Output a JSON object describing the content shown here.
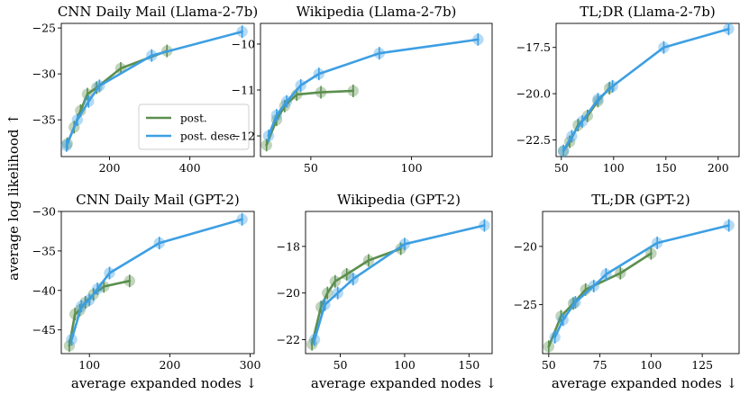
{
  "figure": {
    "xlabel": "average expanded nodes ↓",
    "ylabel": "average log likelihood ↑",
    "colors": {
      "post": "#5b8f4e",
      "post_desc": "#3d9fe3"
    },
    "legend": {
      "post": "post.",
      "post_desc": "post. desc.",
      "location": "lower-right",
      "panel": 0
    }
  },
  "chart_data": [
    {
      "type": "line",
      "title": "CNN Daily Mail (Llama-2-7b)",
      "xlim": [
        80,
        560
      ],
      "ylim": [
        -39,
        -24.5
      ],
      "xticks": [
        200,
        400
      ],
      "xticklabels": [
        "200",
        "400"
      ],
      "yticks": [
        -35,
        -30,
        -25
      ],
      "yticklabels": [
        "−35",
        "−30",
        "−25"
      ],
      "series": [
        {
          "name": "post.",
          "x": [
            95,
            112,
            128,
            145,
            168,
            228,
            343
          ],
          "y": [
            -37.6,
            -35.8,
            -34.0,
            -32.2,
            -31.5,
            -29.4,
            -27.5
          ]
        },
        {
          "name": "post. desc.",
          "x": [
            93,
            120,
            148,
            175,
            305,
            530
          ],
          "y": [
            -37.8,
            -35.0,
            -33.0,
            -31.3,
            -28.0,
            -25.4
          ]
        }
      ]
    },
    {
      "type": "line",
      "title": "Wikipedia (Llama-2-7b)",
      "xlim": [
        25,
        140
      ],
      "ylim": [
        -12.45,
        -9.55
      ],
      "xticks": [
        50,
        100
      ],
      "xticklabels": [
        "50",
        "100"
      ],
      "yticks": [
        -12,
        -11,
        -10
      ],
      "yticklabels": [
        "−12",
        "−11",
        "−10"
      ],
      "series": [
        {
          "name": "post.",
          "x": [
            28,
            33,
            37,
            43,
            55,
            71
          ],
          "y": [
            -12.2,
            -11.65,
            -11.35,
            -11.1,
            -11.05,
            -11.02
          ]
        },
        {
          "name": "post. desc.",
          "x": [
            29,
            33,
            38,
            45,
            54,
            84,
            133
          ],
          "y": [
            -12.0,
            -11.55,
            -11.25,
            -10.9,
            -10.65,
            -10.2,
            -9.9
          ]
        }
      ]
    },
    {
      "type": "line",
      "title": "TL;DR (Llama-2-7b)",
      "xlim": [
        45,
        220
      ],
      "ylim": [
        -23.4,
        -16.2
      ],
      "xticks": [
        50,
        100,
        150,
        200
      ],
      "xticklabels": [
        "50",
        "100",
        "150",
        "200"
      ],
      "yticks": [
        -22.5,
        -20.0,
        -17.5
      ],
      "yticklabels": [
        "−22.5",
        "−20.0",
        "−17.5"
      ],
      "series": [
        {
          "name": "post.",
          "x": [
            52,
            58,
            66,
            75,
            85,
            96
          ],
          "y": [
            -23.1,
            -22.6,
            -21.7,
            -21.2,
            -20.4,
            -19.7
          ]
        },
        {
          "name": "post. desc.",
          "x": [
            52,
            60,
            70,
            85,
            99,
            148,
            210
          ],
          "y": [
            -23.1,
            -22.3,
            -21.5,
            -20.3,
            -19.6,
            -17.5,
            -16.5
          ]
        }
      ]
    },
    {
      "type": "line",
      "title": "CNN Daily Mail (GPT-2)",
      "xlim": [
        65,
        305
      ],
      "ylim": [
        -48,
        -30
      ],
      "xticks": [
        100,
        200,
        300
      ],
      "xticklabels": [
        "100",
        "200",
        "300"
      ],
      "yticks": [
        -45,
        -40,
        -35,
        -30
      ],
      "yticklabels": [
        "−45",
        "−40",
        "−35",
        "−30"
      ],
      "series": [
        {
          "name": "post.",
          "x": [
            75,
            82,
            88,
            95,
            105,
            118,
            150
          ],
          "y": [
            -47.0,
            -43.0,
            -42.5,
            -41.5,
            -40.5,
            -39.5,
            -38.8
          ]
        },
        {
          "name": "post. desc.",
          "x": [
            78,
            90,
            100,
            110,
            125,
            187,
            290
          ],
          "y": [
            -46.2,
            -42.0,
            -41.2,
            -39.8,
            -37.8,
            -34.0,
            -31.0
          ]
        }
      ]
    },
    {
      "type": "line",
      "title": "Wikipedia (GPT-2)",
      "xlim": [
        23,
        168
      ],
      "ylim": [
        -22.6,
        -16.5
      ],
      "xticks": [
        50,
        100,
        150
      ],
      "xticklabels": [
        "50",
        "100",
        "150"
      ],
      "yticks": [
        -22,
        -20,
        -18
      ],
      "yticklabels": [
        "−22",
        "−20",
        "−18"
      ],
      "series": [
        {
          "name": "post.",
          "x": [
            28,
            35,
            40,
            46,
            55,
            72,
            97
          ],
          "y": [
            -22.2,
            -20.6,
            -20.0,
            -19.5,
            -19.2,
            -18.6,
            -18.1
          ]
        },
        {
          "name": "post. desc.",
          "x": [
            30,
            38,
            48,
            60,
            100,
            162
          ],
          "y": [
            -22.0,
            -20.5,
            -20.0,
            -19.4,
            -17.9,
            -17.1
          ]
        }
      ]
    },
    {
      "type": "line",
      "title": "TL;DR (GPT-2)",
      "xlim": [
        47,
        143
      ],
      "ylim": [
        -29.2,
        -17.0
      ],
      "xticks": [
        50,
        75,
        100,
        125
      ],
      "xticklabels": [
        "50",
        "75",
        "100",
        "125"
      ],
      "yticks": [
        -25,
        -20
      ],
      "yticklabels": [
        "−25",
        "−20"
      ],
      "series": [
        {
          "name": "post.",
          "x": [
            50,
            56,
            62,
            68,
            85,
            100
          ],
          "y": [
            -28.6,
            -26.0,
            -24.9,
            -23.7,
            -22.3,
            -20.6
          ]
        },
        {
          "name": "post. desc.",
          "x": [
            53,
            57,
            63,
            72,
            78,
            103,
            138
          ],
          "y": [
            -27.8,
            -26.3,
            -24.8,
            -23.4,
            -22.4,
            -19.7,
            -18.2
          ]
        }
      ]
    }
  ]
}
